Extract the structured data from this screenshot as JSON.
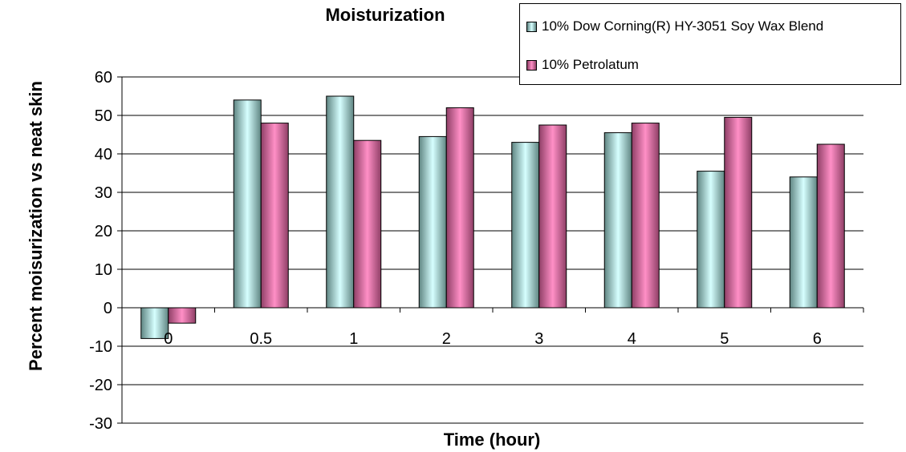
{
  "chart_data": {
    "type": "bar",
    "title": "Moisturization",
    "xlabel": "Time (hour)",
    "ylabel": "Percent moisurization vs neat skin",
    "categories": [
      "0",
      "0.5",
      "1",
      "2",
      "3",
      "4",
      "5",
      "6"
    ],
    "series": [
      {
        "name": "10% Dow Corning(R) HY-3051 Soy Wax Blend",
        "color": "#5f8582",
        "highlight": "#d6ffff",
        "values": [
          -8,
          54,
          55,
          44.5,
          43,
          45.5,
          35.5,
          34
        ]
      },
      {
        "name": "10% Petrolatum",
        "color": "#8f3f66",
        "highlight": "#ff8fc6",
        "values": [
          -4,
          48,
          43.5,
          52,
          47.5,
          48,
          49.5,
          42.5
        ]
      }
    ],
    "ylim": [
      -30,
      60
    ],
    "yticks": [
      -30,
      -20,
      -10,
      0,
      10,
      20,
      30,
      40,
      50,
      60
    ],
    "grid": true,
    "legend_position": "top-right"
  }
}
